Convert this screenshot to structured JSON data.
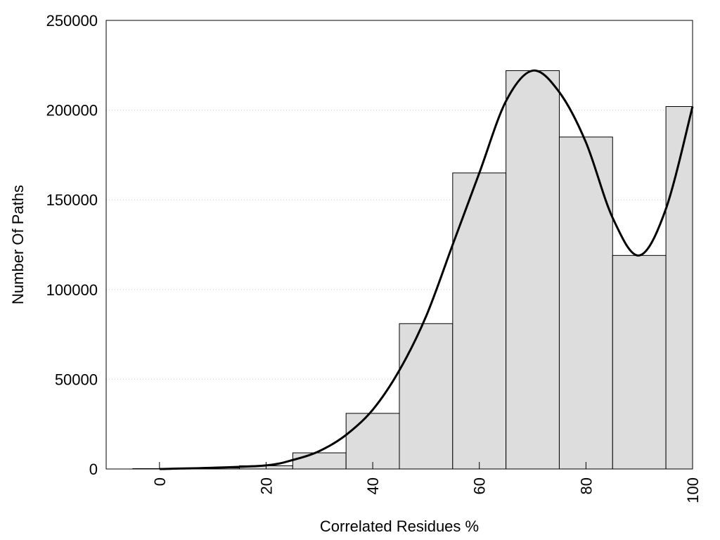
{
  "chart_data": {
    "type": "bar",
    "title": "",
    "xlabel": "Correlated Residues %",
    "ylabel": "Number Of Paths",
    "bar_width": 10,
    "xlim": [
      -10,
      100
    ],
    "ylim": [
      0,
      250000
    ],
    "x_ticks": [
      0,
      20,
      40,
      60,
      80,
      100
    ],
    "y_ticks": [
      0,
      50000,
      100000,
      150000,
      200000,
      250000
    ],
    "grid": "horizontal dotted",
    "legend": "none",
    "bars": [
      {
        "x": 0,
        "value": 200
      },
      {
        "x": 10,
        "value": 600
      },
      {
        "x": 20,
        "value": 1800
      },
      {
        "x": 30,
        "value": 9000
      },
      {
        "x": 40,
        "value": 31000
      },
      {
        "x": 50,
        "value": 81000
      },
      {
        "x": 60,
        "value": 165000
      },
      {
        "x": 70,
        "value": 222000
      },
      {
        "x": 80,
        "value": 185000
      },
      {
        "x": 90,
        "value": 119000
      },
      {
        "x": 100,
        "value": 202000
      }
    ],
    "density_curve": {
      "x": [
        0,
        10,
        20,
        25,
        30,
        35,
        40,
        45,
        50,
        55,
        60,
        65,
        70,
        75,
        80,
        85,
        90,
        95,
        100
      ],
      "y": [
        0,
        700,
        2000,
        5000,
        10000,
        19000,
        33000,
        55000,
        85000,
        125000,
        165000,
        205000,
        222000,
        210000,
        182000,
        140000,
        119000,
        145000,
        202000
      ]
    },
    "colors": {
      "bar_fill": "#dddddd",
      "bar_stroke": "#000000",
      "curve": "#000000",
      "grid": "#cccccc"
    }
  }
}
